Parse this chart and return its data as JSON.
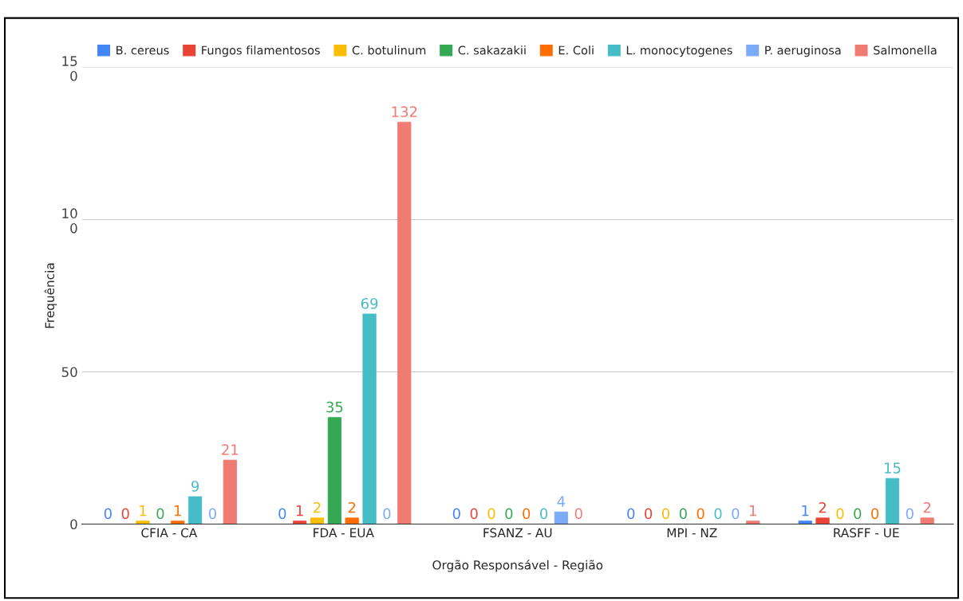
{
  "chart_data": {
    "type": "bar",
    "xlabel": "Orgão Responsável - Região",
    "ylabel": "Frequência",
    "categories": [
      "CFIA - CA",
      "FDA - EUA",
      "FSANZ - AU",
      "MPI - NZ",
      "RASFF - UE"
    ],
    "series": [
      {
        "name": "B. cereus",
        "color": "#4285f4",
        "values": [
          0,
          0,
          0,
          0,
          1
        ]
      },
      {
        "name": "Fungos filamentosos",
        "color": "#ea4335",
        "values": [
          0,
          1,
          0,
          0,
          2
        ]
      },
      {
        "name": "C. botulinum",
        "color": "#fbbc04",
        "values": [
          1,
          2,
          0,
          0,
          0
        ]
      },
      {
        "name": "C. sakazakii",
        "color": "#34a853",
        "values": [
          0,
          35,
          0,
          0,
          0
        ]
      },
      {
        "name": "E. Coli",
        "color": "#ff6d01",
        "values": [
          1,
          2,
          0,
          0,
          0
        ]
      },
      {
        "name": "L. monocytogenes",
        "color": "#46bdc6",
        "values": [
          9,
          69,
          0,
          0,
          15
        ]
      },
      {
        "name": "P. aeruginosa",
        "color": "#7baaf7",
        "values": [
          0,
          0,
          4,
          0,
          0
        ]
      },
      {
        "name": "Salmonella",
        "color": "#f07b72",
        "values": [
          21,
          132,
          0,
          1,
          2
        ]
      }
    ],
    "ylim": [
      0,
      150
    ],
    "yticks": [
      0,
      50,
      {
        "value": 100,
        "label": "10\n0"
      },
      {
        "value": 150,
        "label": "15\n0"
      }
    ],
    "grid": "y",
    "legend": "top",
    "data_labels": true
  }
}
